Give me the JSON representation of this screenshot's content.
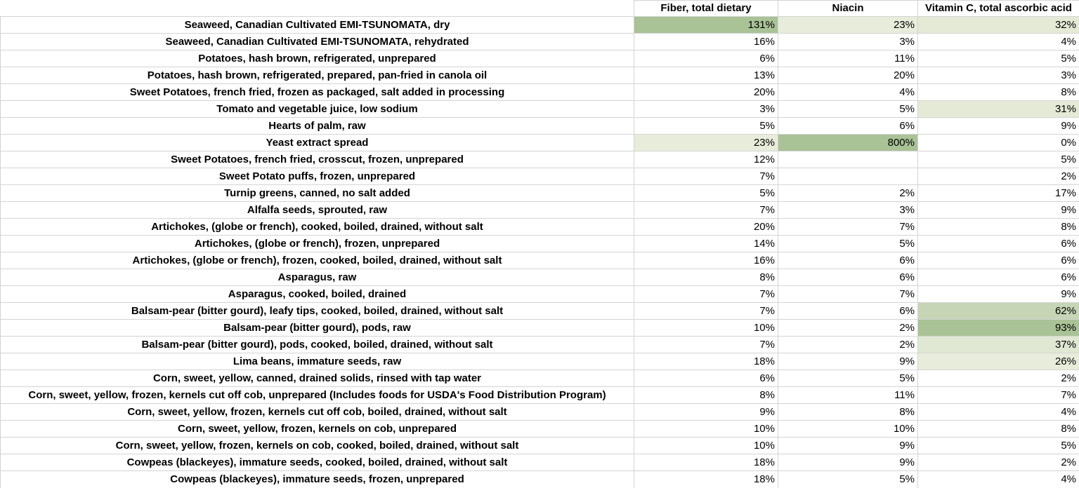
{
  "columns": [
    "",
    "Fiber, total dietary",
    "Niacin",
    "Vitamin C, total ascorbic acid"
  ],
  "rows": [
    {
      "name": "Seaweed, Canadian Cultivated EMI-TSUNOMATA, dry",
      "values": [
        "131%",
        "23%",
        "32%"
      ],
      "shade": [
        "#a9c296",
        "#e8eddb",
        "#e4ead6"
      ]
    },
    {
      "name": "Seaweed, Canadian Cultivated EMI-TSUNOMATA, rehydrated",
      "values": [
        "16%",
        "3%",
        "4%"
      ],
      "shade": [
        "",
        "",
        ""
      ]
    },
    {
      "name": "Potatoes, hash brown, refrigerated, unprepared",
      "values": [
        "6%",
        "11%",
        "5%"
      ],
      "shade": [
        "",
        "",
        ""
      ]
    },
    {
      "name": "Potatoes, hash brown, refrigerated, prepared, pan-fried in canola oil",
      "values": [
        "13%",
        "20%",
        "3%"
      ],
      "shade": [
        "",
        "",
        ""
      ]
    },
    {
      "name": "Sweet Potatoes, french fried, frozen as packaged, salt added in processing",
      "values": [
        "20%",
        "4%",
        "8%"
      ],
      "shade": [
        "",
        "",
        ""
      ]
    },
    {
      "name": "Tomato and vegetable juice, low sodium",
      "values": [
        "3%",
        "5%",
        "31%"
      ],
      "shade": [
        "",
        "",
        "#e4ead6"
      ]
    },
    {
      "name": "Hearts of palm, raw",
      "values": [
        "5%",
        "6%",
        "9%"
      ],
      "shade": [
        "",
        "",
        ""
      ]
    },
    {
      "name": "Yeast extract spread",
      "values": [
        "23%",
        "800%",
        "0%"
      ],
      "shade": [
        "#e8eddb",
        "#a9c296",
        ""
      ]
    },
    {
      "name": "Sweet Potatoes, french fried, crosscut, frozen, unprepared",
      "values": [
        "12%",
        "",
        "5%"
      ],
      "shade": [
        "",
        "",
        ""
      ]
    },
    {
      "name": "Sweet Potato puffs, frozen, unprepared",
      "values": [
        "7%",
        "",
        "2%"
      ],
      "shade": [
        "",
        "",
        ""
      ]
    },
    {
      "name": "Turnip greens, canned, no salt added",
      "values": [
        "5%",
        "2%",
        "17%"
      ],
      "shade": [
        "",
        "",
        ""
      ]
    },
    {
      "name": "Alfalfa seeds, sprouted, raw",
      "values": [
        "7%",
        "3%",
        "9%"
      ],
      "shade": [
        "",
        "",
        ""
      ]
    },
    {
      "name": "Artichokes, (globe or french), cooked, boiled, drained, without salt",
      "values": [
        "20%",
        "7%",
        "8%"
      ],
      "shade": [
        "",
        "",
        ""
      ]
    },
    {
      "name": "Artichokes, (globe or french), frozen, unprepared",
      "values": [
        "14%",
        "5%",
        "6%"
      ],
      "shade": [
        "",
        "",
        ""
      ]
    },
    {
      "name": "Artichokes, (globe or french), frozen, cooked, boiled, drained, without salt",
      "values": [
        "16%",
        "6%",
        "6%"
      ],
      "shade": [
        "",
        "",
        ""
      ]
    },
    {
      "name": "Asparagus, raw",
      "values": [
        "8%",
        "6%",
        "6%"
      ],
      "shade": [
        "",
        "",
        ""
      ]
    },
    {
      "name": "Asparagus, cooked, boiled, drained",
      "values": [
        "7%",
        "7%",
        "9%"
      ],
      "shade": [
        "",
        "",
        ""
      ]
    },
    {
      "name": "Balsam-pear (bitter gourd), leafy tips, cooked, boiled, drained, without salt",
      "values": [
        "7%",
        "6%",
        "62%"
      ],
      "shade": [
        "",
        "",
        "#c6d5b5"
      ]
    },
    {
      "name": "Balsam-pear (bitter gourd), pods, raw",
      "values": [
        "10%",
        "2%",
        "93%"
      ],
      "shade": [
        "",
        "",
        "#a9c296"
      ]
    },
    {
      "name": "Balsam-pear (bitter gourd), pods, cooked, boiled, drained, without salt",
      "values": [
        "7%",
        "2%",
        "37%"
      ],
      "shade": [
        "",
        "",
        "#e0e7d2"
      ]
    },
    {
      "name": "Lima beans, immature seeds, raw",
      "values": [
        "18%",
        "9%",
        "26%"
      ],
      "shade": [
        "",
        "",
        "#e8eddb"
      ]
    },
    {
      "name": "Corn, sweet, yellow, canned, drained solids, rinsed with tap water",
      "values": [
        "6%",
        "5%",
        "2%"
      ],
      "shade": [
        "",
        "",
        ""
      ]
    },
    {
      "name": "Corn, sweet, yellow, frozen, kernels cut off cob, unprepared (Includes foods for USDA's Food Distribution Program)",
      "values": [
        "8%",
        "11%",
        "7%"
      ],
      "shade": [
        "",
        "",
        ""
      ]
    },
    {
      "name": "Corn, sweet, yellow, frozen, kernels cut off cob, boiled, drained, without salt",
      "values": [
        "9%",
        "8%",
        "4%"
      ],
      "shade": [
        "",
        "",
        ""
      ]
    },
    {
      "name": "Corn, sweet, yellow, frozen, kernels on cob, unprepared",
      "values": [
        "10%",
        "10%",
        "8%"
      ],
      "shade": [
        "",
        "",
        ""
      ]
    },
    {
      "name": "Corn, sweet, yellow, frozen, kernels on cob, cooked, boiled, drained, without salt",
      "values": [
        "10%",
        "9%",
        "5%"
      ],
      "shade": [
        "",
        "",
        ""
      ]
    },
    {
      "name": "Cowpeas (blackeyes), immature seeds, cooked, boiled, drained, without salt",
      "values": [
        "18%",
        "9%",
        "2%"
      ],
      "shade": [
        "",
        "",
        ""
      ]
    },
    {
      "name": "Cowpeas (blackeyes), immature seeds, frozen, unprepared",
      "values": [
        "18%",
        "5%",
        "4%"
      ],
      "shade": [
        "",
        "",
        ""
      ]
    }
  ]
}
